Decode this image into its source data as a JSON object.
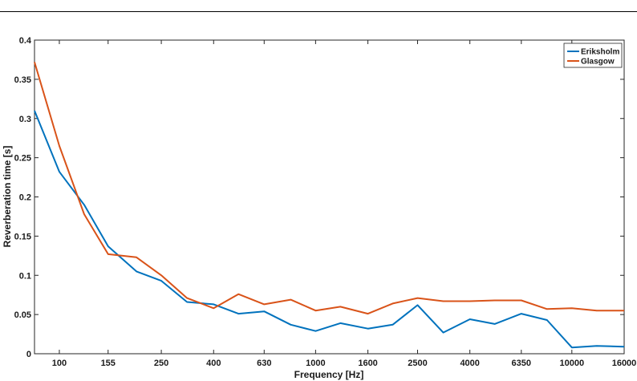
{
  "chart_data": {
    "type": "line",
    "xlabel": "Frequency [Hz]",
    "ylabel": "Reverberation time [s]",
    "ylim": [
      0,
      0.4
    ],
    "y_ticks": [
      "0",
      "0.05",
      "0.1",
      "0.15",
      "0.2",
      "0.25",
      "0.3",
      "0.35",
      "0.4"
    ],
    "x_scale": "log",
    "x_tick_values": [
      100,
      155,
      250,
      400,
      630,
      1000,
      1600,
      2500,
      4000,
      6350,
      10000,
      16000
    ],
    "x_tick_labels": [
      "100",
      "155",
      "250",
      "400",
      "630",
      "1000",
      "1600",
      "2500",
      "4000",
      "6350",
      "10000",
      "16000"
    ],
    "x": [
      80,
      100,
      125,
      155,
      200,
      250,
      315,
      400,
      500,
      630,
      800,
      1000,
      1250,
      1600,
      2000,
      2500,
      3150,
      4000,
      5000,
      6350,
      8000,
      10000,
      12500,
      16000
    ],
    "legend_position": "top-right",
    "grid": false,
    "series": [
      {
        "name": "Eriksholm",
        "color": "#0072BD",
        "values": [
          0.31,
          0.232,
          0.19,
          0.137,
          0.105,
          0.093,
          0.066,
          0.063,
          0.051,
          0.054,
          0.037,
          0.029,
          0.039,
          0.032,
          0.037,
          0.062,
          0.027,
          0.044,
          0.038,
          0.051,
          0.043,
          0.008,
          0.01,
          0.009
        ]
      },
      {
        "name": "Glasgow",
        "color": "#D95319",
        "values": [
          0.372,
          0.265,
          0.178,
          0.127,
          0.123,
          0.1,
          0.071,
          0.058,
          0.076,
          0.063,
          0.069,
          0.055,
          0.06,
          0.051,
          0.064,
          0.071,
          0.067,
          0.067,
          0.068,
          0.068,
          0.057,
          0.058,
          0.055,
          0.055
        ]
      }
    ]
  }
}
